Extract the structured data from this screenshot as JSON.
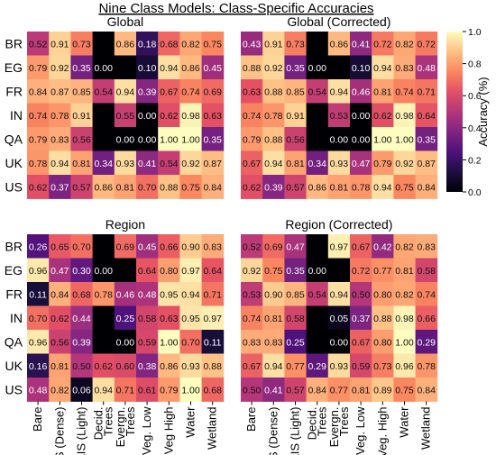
{
  "chart_data": {
    "type": "heatmap",
    "title": "Nine Class Models: Class-Specific Accuracies",
    "rows": [
      "BR",
      "EG",
      "FR",
      "IN",
      "QA",
      "UK",
      "US"
    ],
    "columns": [
      "Bare",
      "AIS (Dense)",
      "AIS (Light)",
      "Decid. Trees",
      "Evergn. Trees",
      "Veg. Low",
      "Veg High",
      "Water",
      "Wetland"
    ],
    "columns_right": [
      "Bare",
      "AIS (Dense)",
      "AIS (Light)",
      "Decid. Trees",
      "Evergn. Trees",
      "Veg. Low",
      "Veg. High",
      "Water",
      "Wetland"
    ],
    "colorbar": {
      "label": "Accuracy (%)",
      "range": [
        0,
        1
      ],
      "ticks": [
        "0.0",
        "0.2",
        "0.4",
        "0.6",
        "0.8",
        "1.0"
      ],
      "colormap": "magma"
    },
    "panels": [
      {
        "title": "Global",
        "values": [
          [
            0.52,
            0.91,
            0.73,
            null,
            0.86,
            0.18,
            0.68,
            0.82,
            0.75
          ],
          [
            0.79,
            0.92,
            0.35,
            0.0,
            null,
            0.1,
            0.94,
            0.86,
            0.45
          ],
          [
            0.84,
            0.87,
            0.85,
            0.54,
            0.94,
            0.39,
            0.67,
            0.74,
            0.69
          ],
          [
            0.74,
            0.78,
            0.91,
            null,
            0.55,
            0.0,
            0.62,
            0.98,
            0.63
          ],
          [
            0.79,
            0.83,
            0.56,
            null,
            0.0,
            0.0,
            1.0,
            1.0,
            0.35
          ],
          [
            0.78,
            0.94,
            0.81,
            0.34,
            0.93,
            0.41,
            0.54,
            0.92,
            0.87
          ],
          [
            0.62,
            0.37,
            0.57,
            0.86,
            0.81,
            0.7,
            0.88,
            0.75,
            0.84
          ]
        ]
      },
      {
        "title": "Global (Corrected)",
        "values": [
          [
            0.43,
            0.91,
            0.73,
            null,
            0.86,
            0.41,
            0.72,
            0.82,
            0.72
          ],
          [
            0.88,
            0.92,
            0.35,
            0.0,
            null,
            0.1,
            0.94,
            0.83,
            0.48
          ],
          [
            0.63,
            0.88,
            0.85,
            0.54,
            0.94,
            0.46,
            0.81,
            0.74,
            0.71
          ],
          [
            0.74,
            0.78,
            0.91,
            null,
            0.53,
            0.0,
            0.62,
            0.98,
            0.64
          ],
          [
            0.79,
            0.88,
            0.56,
            null,
            0.0,
            0.0,
            1.0,
            1.0,
            0.35
          ],
          [
            0.67,
            0.94,
            0.81,
            0.34,
            0.93,
            0.47,
            0.79,
            0.92,
            0.87
          ],
          [
            0.62,
            0.39,
            0.57,
            0.86,
            0.81,
            0.78,
            0.94,
            0.75,
            0.84
          ]
        ]
      },
      {
        "title": "Region",
        "values": [
          [
            0.26,
            0.65,
            0.7,
            null,
            0.69,
            0.45,
            0.66,
            0.9,
            0.83
          ],
          [
            0.96,
            0.47,
            0.3,
            0.0,
            null,
            0.64,
            0.8,
            0.97,
            0.64
          ],
          [
            0.11,
            0.84,
            0.68,
            0.78,
            0.46,
            0.48,
            0.95,
            0.94,
            0.71
          ],
          [
            0.7,
            0.62,
            0.44,
            null,
            0.25,
            0.58,
            0.63,
            0.95,
            0.97
          ],
          [
            0.96,
            0.56,
            0.39,
            null,
            0.0,
            0.59,
            1.0,
            0.7,
            0.11
          ],
          [
            0.16,
            0.81,
            0.5,
            0.62,
            0.6,
            0.38,
            0.86,
            0.93,
            0.88
          ],
          [
            0.48,
            0.82,
            0.06,
            0.94,
            0.71,
            0.61,
            0.79,
            1.0,
            0.68
          ]
        ]
      },
      {
        "title": "Region (Corrected)",
        "values": [
          [
            0.52,
            0.69,
            0.47,
            null,
            0.97,
            0.67,
            0.42,
            0.82,
            0.83
          ],
          [
            0.92,
            0.75,
            0.35,
            0.0,
            null,
            0.72,
            0.77,
            0.81,
            0.58
          ],
          [
            0.53,
            0.9,
            0.85,
            0.54,
            0.94,
            0.5,
            0.8,
            0.82,
            0.74
          ],
          [
            0.74,
            0.81,
            0.58,
            null,
            0.05,
            0.37,
            0.88,
            0.98,
            0.66
          ],
          [
            0.83,
            0.83,
            0.25,
            null,
            0.0,
            0.67,
            0.8,
            1.0,
            0.29
          ],
          [
            0.67,
            0.94,
            0.77,
            0.29,
            0.93,
            0.59,
            0.73,
            0.96,
            0.78
          ],
          [
            0.5,
            0.41,
            0.57,
            0.84,
            0.77,
            0.81,
            0.89,
            0.75,
            0.84
          ]
        ]
      }
    ]
  }
}
